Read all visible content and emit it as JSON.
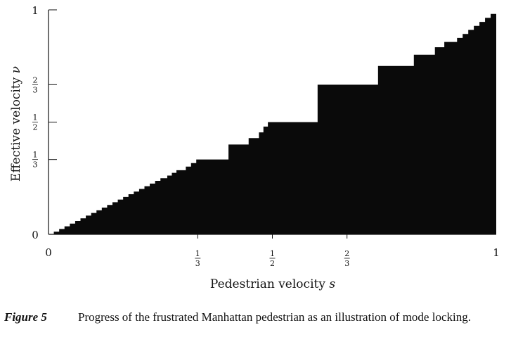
{
  "chart_data": {
    "type": "area",
    "title": "",
    "xlabel": "Pedestrian velocity",
    "xlabel_var": "s",
    "ylabel": "Effective velocity",
    "ylabel_var": "ν",
    "xlim": [
      0,
      1
    ],
    "ylim": [
      0,
      1
    ],
    "grid": false,
    "xticks": [
      {
        "value": 0,
        "num": "0",
        "den": ""
      },
      {
        "value": 0.3333,
        "num": "1",
        "den": "3"
      },
      {
        "value": 0.5,
        "num": "1",
        "den": "2"
      },
      {
        "value": 0.6667,
        "num": "2",
        "den": "3"
      },
      {
        "value": 1,
        "num": "1",
        "den": ""
      }
    ],
    "yticks": [
      {
        "value": 0,
        "num": "0",
        "den": ""
      },
      {
        "value": 0.3333,
        "num": "1",
        "den": "3"
      },
      {
        "value": 0.5,
        "num": "1",
        "den": "2"
      },
      {
        "value": 0.6667,
        "num": "2",
        "den": "3"
      },
      {
        "value": 1,
        "num": "1",
        "den": ""
      }
    ],
    "plateaus": [
      {
        "x0": 0.0,
        "x1": 0.0,
        "y": 0.0
      },
      {
        "x0": 0.25,
        "x1": 0.255,
        "y": 0.25
      },
      {
        "x0": 0.2857,
        "x1": 0.295,
        "y": 0.2857
      },
      {
        "x0": 0.33,
        "x1": 0.402,
        "y": 0.3333
      },
      {
        "x0": 0.402,
        "x1": 0.447,
        "y": 0.4
      },
      {
        "x0": 0.447,
        "x1": 0.46,
        "y": 0.4286
      },
      {
        "x0": 0.48,
        "x1": 0.49,
        "y": 0.48
      },
      {
        "x0": 0.49,
        "x1": 0.6,
        "y": 0.5
      },
      {
        "x0": 0.601,
        "x1": 0.736,
        "y": 0.6667
      },
      {
        "x0": 0.736,
        "x1": 0.816,
        "y": 0.75
      },
      {
        "x0": 0.816,
        "x1": 0.863,
        "y": 0.8
      },
      {
        "x0": 0.863,
        "x1": 0.884,
        "y": 0.8333
      },
      {
        "x0": 0.884,
        "x1": 0.9,
        "y": 0.8571
      },
      {
        "x0": 1.0,
        "x1": 1.0,
        "y": 1.0
      }
    ]
  },
  "caption": {
    "label": "Figure 5",
    "text": "Progress of the frustrated Manhattan pedestrian as an illustration of mode locking."
  }
}
